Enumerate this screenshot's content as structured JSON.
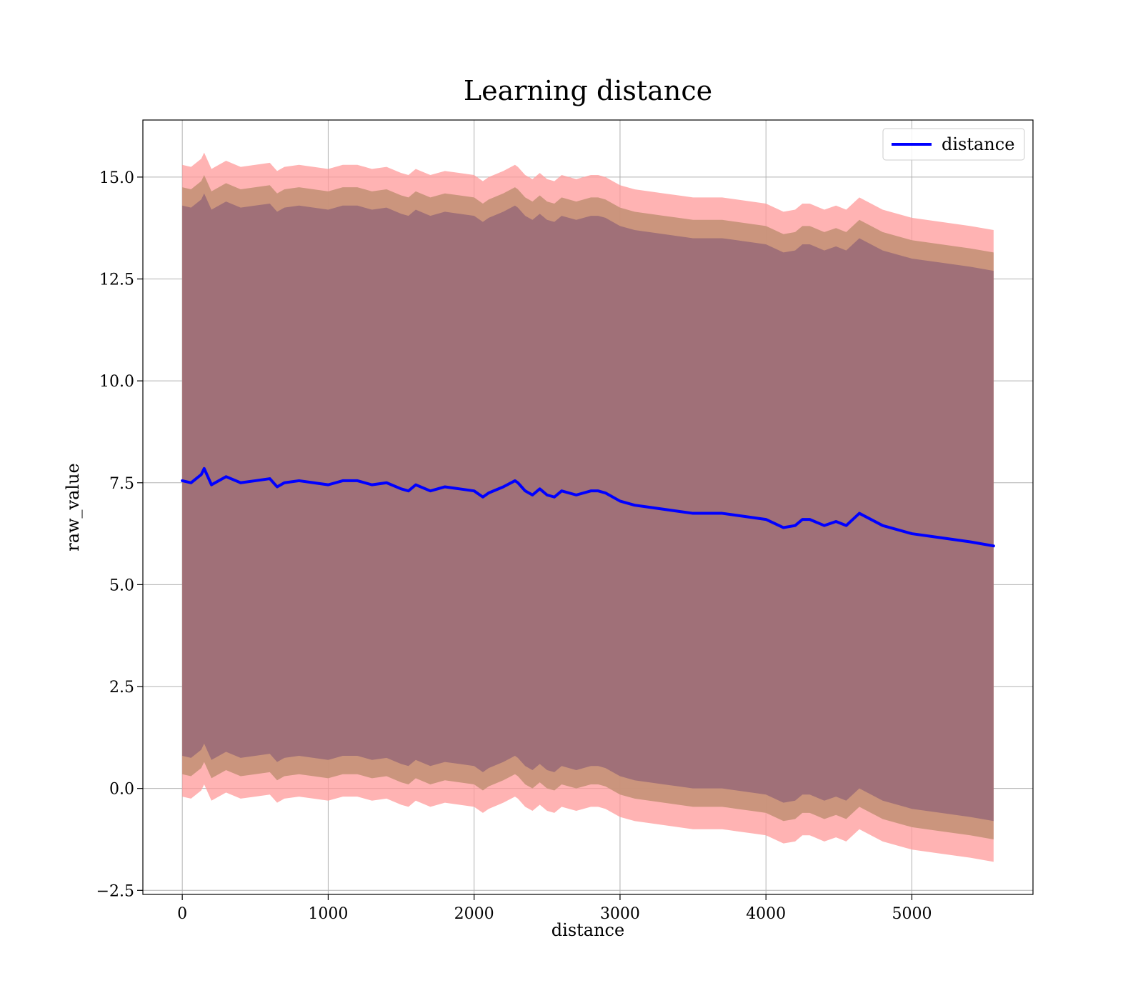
{
  "chart_data": {
    "type": "line",
    "title": "Learning distance",
    "xlabel": "distance",
    "ylabel": "raw_value",
    "xlim": [
      -270,
      5830
    ],
    "ylim": [
      -2.6,
      16.4
    ],
    "xticks": [
      0,
      1000,
      2000,
      3000,
      4000,
      5000
    ],
    "yticks": [
      -2.5,
      0.0,
      2.5,
      5.0,
      7.5,
      10.0,
      12.5,
      15.0
    ],
    "ytick_labels": [
      "−2.5",
      "0.0",
      "2.5",
      "5.0",
      "7.5",
      "10.0",
      "12.5",
      "15.0"
    ],
    "grid": true,
    "legend": {
      "position": "top-right"
    },
    "colors": {
      "line": "#0000ff",
      "outer_band": "#ff9999",
      "middle_band": "#c8937a",
      "inner_band": "#a07078",
      "grid": "#b0b0b0"
    },
    "series": [
      {
        "name": "distance",
        "x": [
          0,
          60,
          130,
          150,
          200,
          300,
          400,
          500,
          600,
          650,
          700,
          800,
          900,
          1000,
          1100,
          1200,
          1300,
          1400,
          1500,
          1550,
          1600,
          1700,
          1800,
          1900,
          2000,
          2060,
          2100,
          2200,
          2280,
          2300,
          2350,
          2400,
          2450,
          2500,
          2550,
          2600,
          2700,
          2800,
          2850,
          2900,
          3000,
          3100,
          3200,
          3300,
          3400,
          3500,
          3600,
          3700,
          3800,
          3900,
          4000,
          4120,
          4200,
          4250,
          4300,
          4400,
          4480,
          4550,
          4640,
          4800,
          5000,
          5200,
          5400,
          5560
        ],
        "values": [
          7.55,
          7.5,
          7.7,
          7.85,
          7.45,
          7.65,
          7.5,
          7.55,
          7.6,
          7.4,
          7.5,
          7.55,
          7.5,
          7.45,
          7.55,
          7.55,
          7.45,
          7.5,
          7.35,
          7.3,
          7.45,
          7.3,
          7.4,
          7.35,
          7.3,
          7.15,
          7.25,
          7.4,
          7.55,
          7.5,
          7.3,
          7.2,
          7.35,
          7.2,
          7.15,
          7.3,
          7.2,
          7.3,
          7.3,
          7.25,
          7.05,
          6.95,
          6.9,
          6.85,
          6.8,
          6.75,
          6.75,
          6.75,
          6.7,
          6.65,
          6.6,
          6.4,
          6.45,
          6.6,
          6.6,
          6.45,
          6.55,
          6.45,
          6.75,
          6.45,
          6.25,
          6.15,
          6.05,
          5.95
        ],
        "band_half_widths": [
          7.75,
          7.2,
          6.75
        ]
      }
    ]
  }
}
